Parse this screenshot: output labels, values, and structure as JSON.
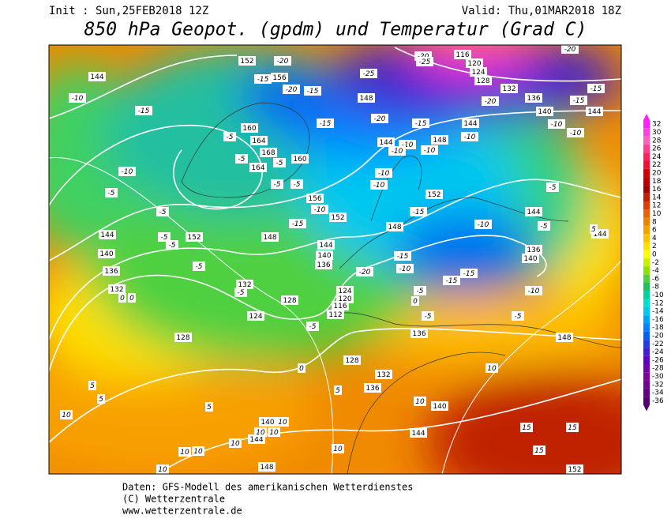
{
  "header": {
    "init": "Init : Sun,25FEB2018 12Z",
    "valid": "Valid: Thu,01MAR2018 18Z",
    "title": "850 hPa Geopot. (gpdm) und Temperatur (Grad C)"
  },
  "footer": {
    "line1": "Daten: GFS-Modell des amerikanischen Wetterdienstes",
    "line2": "(C) Wetterzentrale",
    "line3": "www.wetterzentrale.de"
  },
  "map": {
    "geopotential_labels": [
      152,
      156,
      160,
      164,
      168,
      160,
      164,
      156,
      152,
      148,
      152,
      144,
      140,
      136,
      132,
      128,
      124,
      124,
      120,
      116,
      112,
      128,
      128,
      132,
      136,
      140,
      140,
      144,
      144,
      148,
      152,
      136,
      144,
      144,
      140,
      136,
      132,
      148,
      144,
      148,
      152,
      144,
      148,
      144,
      140,
      136,
      144,
      144,
      136,
      132,
      140,
      128,
      124,
      120,
      116,
      148
    ],
    "temperature_labels": [
      -20,
      -15,
      -20,
      -15,
      -25,
      -20,
      -25,
      -20,
      -15,
      -15,
      -20,
      -10,
      -15,
      -20,
      -15,
      -15,
      -10,
      -10,
      -10,
      -5,
      -5,
      -5,
      -10,
      -10,
      -10,
      -10,
      -5,
      -5,
      -10,
      -10,
      -5,
      -5,
      -5,
      -10,
      -15,
      -15,
      -10,
      -5,
      -5,
      -5,
      -5,
      -15,
      -10,
      -20,
      -5,
      -15,
      -15,
      -10,
      -5,
      0,
      -5,
      -5,
      -5,
      0,
      5,
      5,
      5,
      5,
      10,
      0,
      0,
      10,
      10,
      15,
      15,
      15,
      10,
      10,
      10,
      10,
      10,
      10,
      10,
      10,
      5
    ]
  },
  "colorbar": {
    "values": [
      32,
      30,
      28,
      26,
      24,
      22,
      20,
      18,
      16,
      14,
      12,
      10,
      8,
      6,
      4,
      2,
      0,
      -2,
      -4,
      -6,
      -8,
      -10,
      -12,
      -14,
      -16,
      -18,
      -20,
      -22,
      -24,
      -26,
      -28,
      -30,
      -32,
      -34,
      -36
    ],
    "colors": [
      "#ff20ff",
      "#ff40e0",
      "#ff60c0",
      "#ff4090",
      "#ff2060",
      "#f01030",
      "#d00000",
      "#b80000",
      "#a00000",
      "#c02000",
      "#d84000",
      "#e86000",
      "#f08000",
      "#f8a000",
      "#ffc000",
      "#ffe000",
      "#ffff00",
      "#c8f000",
      "#90e000",
      "#50d040",
      "#20c060",
      "#00d0a0",
      "#00e0d0",
      "#00c8f0",
      "#00a0ff",
      "#0080ff",
      "#0060f0",
      "#2040e0",
      "#4020d0",
      "#6000c0",
      "#7000b0",
      "#8000a0",
      "#700090",
      "#600080",
      "#500070"
    ]
  }
}
